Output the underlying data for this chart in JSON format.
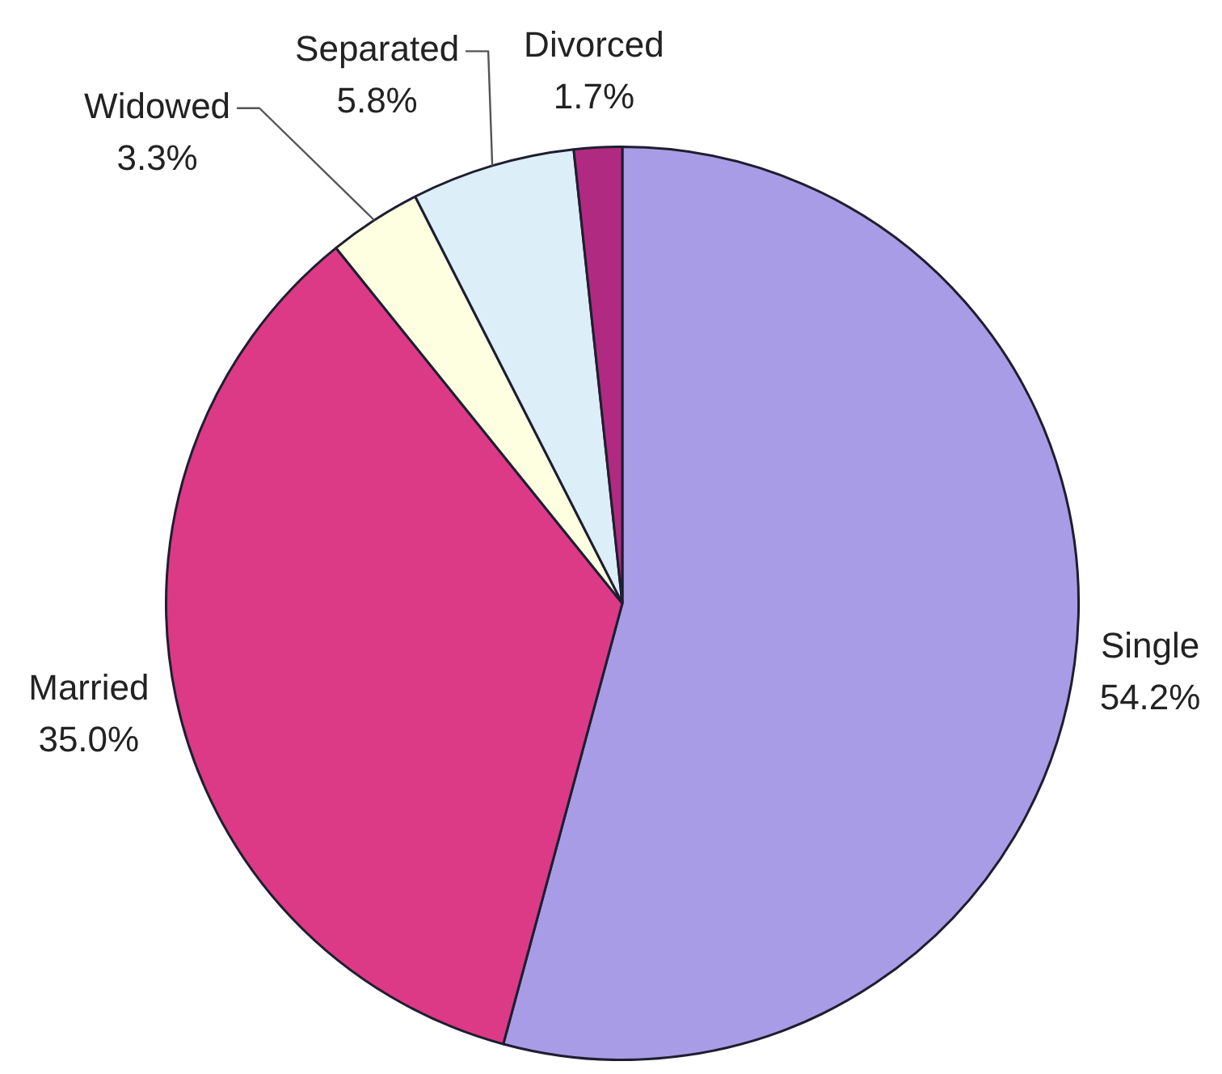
{
  "chart_data": {
    "type": "pie",
    "categories": [
      "Single",
      "Married",
      "Widowed",
      "Separated",
      "Divorced"
    ],
    "values": [
      54.2,
      35.0,
      3.3,
      5.8,
      1.7
    ],
    "colors": [
      "#a99ce6",
      "#dc3a86",
      "#fefee0",
      "#dceef8",
      "#b02a82"
    ],
    "value_labels": [
      "54.2%",
      "35.0%",
      "3.3%",
      "5.8%",
      "1.7%"
    ]
  }
}
